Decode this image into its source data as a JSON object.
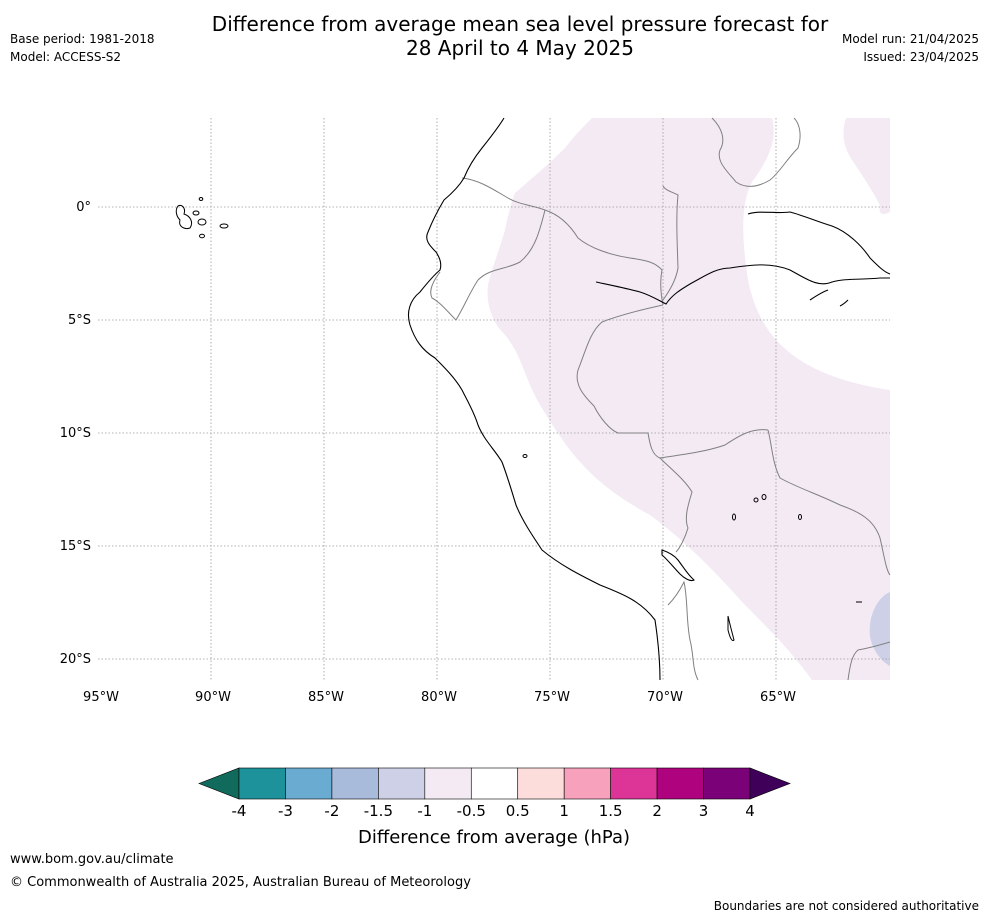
{
  "header": {
    "title_line1": "Difference from average mean sea level pressure forecast for",
    "title_line2": "28 April to 4 May 2025",
    "base_period": "Base period: 1981-2018",
    "model": "Model: ACCESS-S2",
    "model_run": "Model run: 21/04/2025",
    "issued": "Issued: 23/04/2025"
  },
  "map": {
    "lon_ticks": [
      "95°W",
      "90°W",
      "85°W",
      "80°W",
      "75°W",
      "70°W",
      "65°W"
    ],
    "lat_ticks": [
      "0°",
      "5°S",
      "10°S",
      "15°S",
      "20°S"
    ],
    "colors": {
      "coast": "#000000",
      "border": "#808080",
      "grid": "#9a9a9a",
      "fill_slight_positive": "#f3eaf4",
      "fill_slight_negative": "#cdd0e6"
    }
  },
  "colorbar": {
    "labels": [
      "-4",
      "-3",
      "-2",
      "-1.5",
      "-1",
      "-0.5",
      "0.5",
      "1",
      "1.5",
      "2",
      "3",
      "4"
    ],
    "colors": [
      "#116b5c",
      "#1d929b",
      "#6aabd2",
      "#a8bbdb",
      "#cdd0e6",
      "#f3eaf4",
      "#ffffff",
      "#fddcdc",
      "#f8a1bd",
      "#dc3497",
      "#ae027e",
      "#7a0177",
      "#3f0059"
    ],
    "title": "Difference from average (hPa)"
  },
  "footer": {
    "url": "www.bom.gov.au/climate",
    "copyright": "© Commonwealth of Australia 2025, Australian Bureau of Meteorology",
    "disclaimer": "Boundaries are not considered authoritative"
  }
}
